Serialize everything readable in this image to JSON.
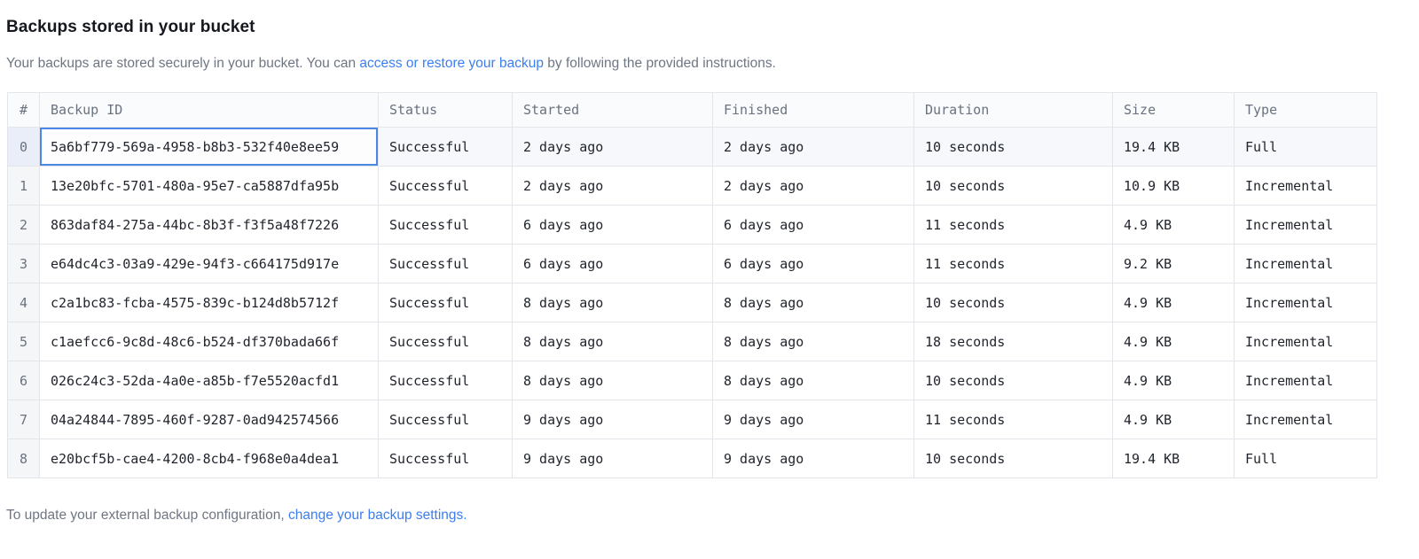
{
  "page": {
    "title": "Backups stored in your bucket",
    "intro": {
      "before_link": "Your backups are stored securely in your bucket. You can ",
      "link_label": "access or restore your backup",
      "after_link": " by following the provided instructions."
    },
    "footer": {
      "before_link": "To update your external backup configuration, ",
      "link_label": "change your backup settings."
    }
  },
  "table": {
    "columns": [
      "#",
      "Backup ID",
      "Status",
      "Started",
      "Finished",
      "Duration",
      "Size",
      "Type"
    ],
    "column_keys": [
      "index",
      "backup_id",
      "status",
      "started",
      "finished",
      "duration",
      "size",
      "type"
    ],
    "rows": [
      {
        "index": "0",
        "backup_id": "5a6bf779-569a-4958-b8b3-532f40e8ee59",
        "status": "Successful",
        "started": "2 days ago",
        "finished": "2 days ago",
        "duration": "10 seconds",
        "size": "19.4 KB",
        "type": "Full",
        "selected": true,
        "selected_cell": "backup_id"
      },
      {
        "index": "1",
        "backup_id": "13e20bfc-5701-480a-95e7-ca5887dfa95b",
        "status": "Successful",
        "started": "2 days ago",
        "finished": "2 days ago",
        "duration": "10 seconds",
        "size": "10.9 KB",
        "type": "Incremental"
      },
      {
        "index": "2",
        "backup_id": "863daf84-275a-44bc-8b3f-f3f5a48f7226",
        "status": "Successful",
        "started": "6 days ago",
        "finished": "6 days ago",
        "duration": "11 seconds",
        "size": "4.9 KB",
        "type": "Incremental"
      },
      {
        "index": "3",
        "backup_id": "e64dc4c3-03a9-429e-94f3-c664175d917e",
        "status": "Successful",
        "started": "6 days ago",
        "finished": "6 days ago",
        "duration": "11 seconds",
        "size": "9.2 KB",
        "type": "Incremental"
      },
      {
        "index": "4",
        "backup_id": "c2a1bc83-fcba-4575-839c-b124d8b5712f",
        "status": "Successful",
        "started": "8 days ago",
        "finished": "8 days ago",
        "duration": "10 seconds",
        "size": "4.9 KB",
        "type": "Incremental"
      },
      {
        "index": "5",
        "backup_id": "c1aefcc6-9c8d-48c6-b524-df370bada66f",
        "status": "Successful",
        "started": "8 days ago",
        "finished": "8 days ago",
        "duration": "18 seconds",
        "size": "4.9 KB",
        "type": "Incremental"
      },
      {
        "index": "6",
        "backup_id": "026c24c3-52da-4a0e-a85b-f7e5520acfd1",
        "status": "Successful",
        "started": "8 days ago",
        "finished": "8 days ago",
        "duration": "10 seconds",
        "size": "4.9 KB",
        "type": "Incremental"
      },
      {
        "index": "7",
        "backup_id": "04a24844-7895-460f-9287-0ad942574566",
        "status": "Successful",
        "started": "9 days ago",
        "finished": "9 days ago",
        "duration": "11 seconds",
        "size": "4.9 KB",
        "type": "Incremental"
      },
      {
        "index": "8",
        "backup_id": "e20bcf5b-cae4-4200-8cb4-f968e0a4dea1",
        "status": "Successful",
        "started": "9 days ago",
        "finished": "9 days ago",
        "duration": "10 seconds",
        "size": "19.4 KB",
        "type": "Full"
      }
    ]
  },
  "colors": {
    "link_blue": "#3b7ef2",
    "selected_cell_border": "#4c87e8",
    "header_bg": "#fafbfc",
    "grid_border": "#e2e5ea",
    "selected_row_bg": "#f6f8fb",
    "index_col_bg": "#f5f6f8",
    "muted_text": "#6f7683"
  }
}
